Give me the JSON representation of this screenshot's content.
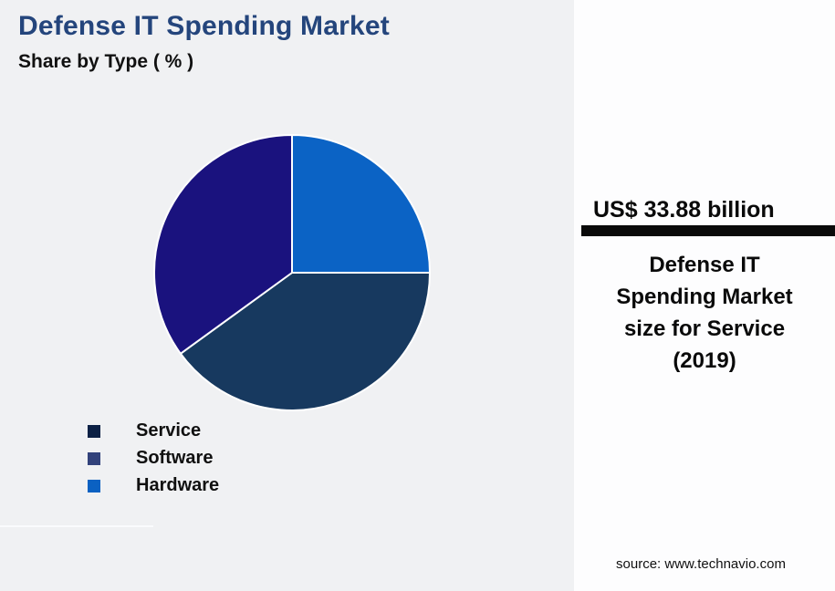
{
  "header": {
    "title": "Defense IT Spending Market",
    "subtitle": "Share by Type ( % )"
  },
  "chart_data": {
    "type": "pie",
    "title": "Defense IT Spending Market Share by Type ( % )",
    "unit": "%",
    "start_at": "top",
    "direction": "clockwise",
    "slices": [
      {
        "label": "Hardware",
        "value": 25,
        "color": "#0B63C5"
      },
      {
        "label": "Service",
        "value": 40,
        "color": "#17395F"
      },
      {
        "label": "Software",
        "value": 35,
        "color": "#1A127E"
      }
    ],
    "legend": [
      {
        "label": "Service",
        "color": "#0C2145"
      },
      {
        "label": "Software",
        "color": "#32427B"
      },
      {
        "label": "Hardware",
        "color": "#0B61C2"
      }
    ],
    "legend_position": "bottom-left",
    "slice_border_color": "#FFFFFF"
  },
  "callout": {
    "value": "US$ 33.88 billion",
    "description": "Defense IT Spending Market size for Service (2019)",
    "bar_color": "#0A0A0A"
  },
  "footer": {
    "source": "source: www.technavio.com"
  },
  "colors": {
    "background": "#F0F1F3",
    "panel_background": "#FDFDFE",
    "title_text": "#24457C",
    "body_text": "#0A0A0A"
  }
}
